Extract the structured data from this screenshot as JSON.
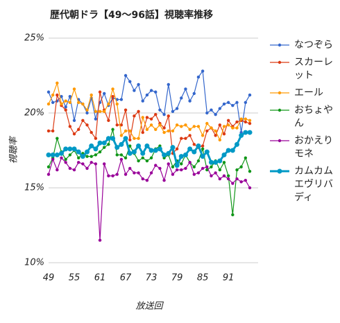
{
  "chart_data": {
    "type": "line",
    "title": "歴代朝ドラ【49～96話】視聴率推移",
    "xlabel": "放送回",
    "ylabel": "視聴率",
    "x": [
      49,
      50,
      51,
      52,
      53,
      54,
      55,
      56,
      57,
      58,
      59,
      60,
      61,
      62,
      63,
      64,
      65,
      66,
      67,
      68,
      69,
      70,
      71,
      72,
      73,
      74,
      75,
      76,
      77,
      78,
      79,
      80,
      81,
      82,
      83,
      84,
      85,
      86,
      87,
      88,
      89,
      90,
      91,
      92,
      93,
      94,
      95,
      96
    ],
    "xlim": [
      49,
      96
    ],
    "xticks": [
      49,
      55,
      61,
      67,
      73,
      79,
      85,
      91
    ],
    "ylim": [
      10,
      25
    ],
    "yticks": [
      {
        "value": 10,
        "label": "10%"
      },
      {
        "value": 15,
        "label": "15%"
      },
      {
        "value": 20,
        "label": "20%"
      },
      {
        "value": 25,
        "label": "25%"
      }
    ],
    "grid": true,
    "legend": "right",
    "series": [
      {
        "name": "なつぞら",
        "color": "#3366cc",
        "values": [
          21.4,
          20.7,
          20.8,
          21.1,
          20.4,
          21.1,
          19.5,
          20.9,
          20.6,
          20.0,
          21.0,
          19.6,
          20.7,
          21.3,
          20.5,
          21.0,
          20.9,
          20.9,
          22.5,
          22.1,
          21.5,
          21.9,
          20.8,
          21.2,
          21.5,
          21.4,
          20.2,
          19.9,
          21.9,
          20.1,
          20.3,
          21.0,
          21.6,
          20.8,
          21.3,
          22.4,
          22.8,
          20.0,
          20.2,
          19.9,
          20.3,
          20.6,
          20.7,
          20.5,
          20.7,
          18.7,
          20.7,
          21.2
        ]
      },
      {
        "name": "スカーレット",
        "color": "#dc3912",
        "values": [
          18.8,
          18.8,
          21.2,
          20.5,
          20.2,
          19.1,
          18.6,
          18.9,
          19.5,
          19.2,
          18.7,
          18.3,
          21.4,
          20.2,
          19.5,
          21.1,
          19.2,
          19.2,
          20.2,
          18.2,
          19.8,
          20.1,
          18.7,
          19.7,
          19.6,
          19.9,
          19.3,
          19.0,
          19.8,
          17.3,
          17.6,
          18.3,
          18.3,
          18.5,
          17.9,
          17.7,
          17.8,
          18.8,
          19.0,
          18.5,
          19.2,
          18.6,
          19.5,
          19.1,
          19.4,
          19.5,
          19.4,
          19.3
        ]
      },
      {
        "name": "エール",
        "color": "#ff9900",
        "values": [
          20.6,
          21.2,
          22.0,
          20.6,
          20.8,
          20.7,
          21.6,
          20.7,
          20.6,
          20.2,
          21.2,
          20.1,
          20.1,
          20.1,
          20.6,
          21.6,
          20.6,
          18.5,
          18.8,
          18.8,
          18.3,
          18.3,
          19.7,
          18.9,
          19.2,
          18.9,
          19.2,
          18.7,
          18.8,
          18.8,
          19.2,
          19.1,
          19.2,
          18.9,
          19.1,
          19.1,
          18.5,
          19.3,
          19.0,
          18.8,
          18.2,
          19.1,
          19.2,
          19.0,
          19.0,
          19.6,
          19.6,
          19.5
        ]
      },
      {
        "name": "おちょやん",
        "color": "#109618",
        "values": [
          16.4,
          17.0,
          18.3,
          17.4,
          16.9,
          17.2,
          17.5,
          17.0,
          17.3,
          17.1,
          17.1,
          17.2,
          17.4,
          17.7,
          17.9,
          18.9,
          17.2,
          17.2,
          17.0,
          17.8,
          17.3,
          16.8,
          17.0,
          16.8,
          17.0,
          17.6,
          17.8,
          17.0,
          17.2,
          16.4,
          16.8,
          16.6,
          17.2,
          16.7,
          16.4,
          16.8,
          17.6,
          16.2,
          16.4,
          16.8,
          16.2,
          16.7,
          15.8,
          13.2,
          16.2,
          16.4,
          17.0,
          16.1
        ]
      },
      {
        "name": "おかえりモネ",
        "color": "#990099",
        "values": [
          15.9,
          16.9,
          16.2,
          17.0,
          16.7,
          16.3,
          16.2,
          16.7,
          16.6,
          16.3,
          16.7,
          16.6,
          11.5,
          16.6,
          15.8,
          15.8,
          15.9,
          16.9,
          15.9,
          16.3,
          16.0,
          16.0,
          15.6,
          15.5,
          16.0,
          16.5,
          16.3,
          15.5,
          16.6,
          15.9,
          16.2,
          16.2,
          16.3,
          16.7,
          15.9,
          16.0,
          16.3,
          16.4,
          15.8,
          16.0,
          15.6,
          15.8,
          15.6,
          15.3,
          15.6,
          15.4,
          15.5,
          15.0
        ]
      },
      {
        "name": "カムカムエヴリバディ",
        "color": "#0099c6",
        "width": 3,
        "values": [
          17.2,
          17.2,
          17.2,
          17.3,
          17.6,
          17.6,
          17.6,
          17.4,
          17.1,
          17.4,
          17.8,
          17.6,
          18.0,
          18.0,
          18.3,
          18.3,
          17.7,
          17.9,
          18.3,
          17.3,
          17.4,
          17.8,
          17.3,
          17.8,
          17.5,
          17.5,
          17.6,
          17.2,
          17.3,
          17.7,
          16.5,
          17.1,
          17.2,
          17.6,
          17.4,
          17.8,
          17.1,
          17.4,
          16.7,
          16.7,
          16.8,
          17.2,
          17.5,
          17.5,
          17.9,
          18.5,
          18.7,
          18.7
        ]
      }
    ]
  }
}
